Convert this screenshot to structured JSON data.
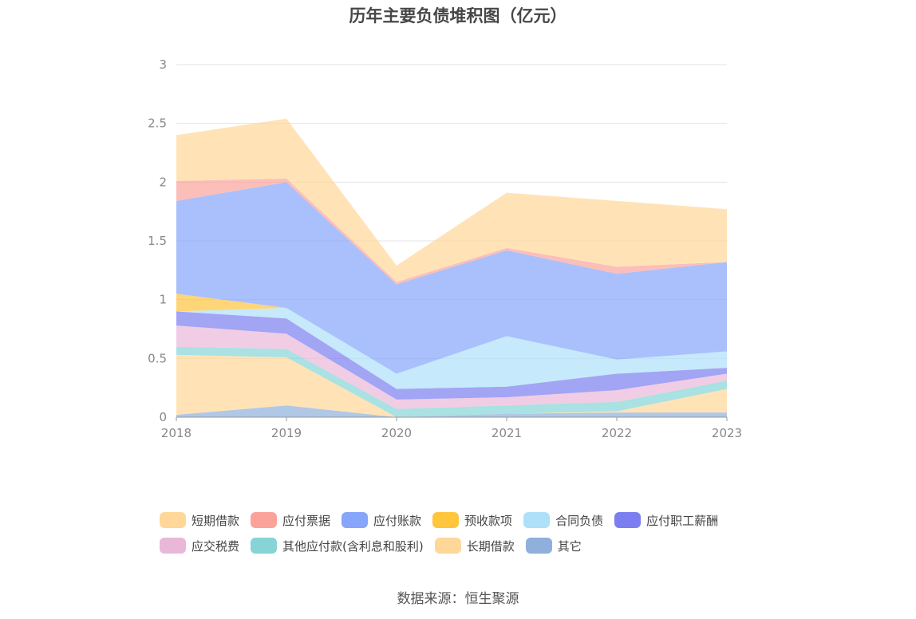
{
  "chart_data": {
    "type": "area",
    "stacked": true,
    "title": "历年主要负债堆积图（亿元）",
    "categories": [
      "2018",
      "2019",
      "2020",
      "2021",
      "2022",
      "2023"
    ],
    "ylim": [
      0,
      3
    ],
    "yticks": [
      "0",
      "0.5",
      "1",
      "1.5",
      "2",
      "2.5",
      "3"
    ],
    "grid": true,
    "legend_position": "bottom",
    "series": [
      {
        "name": "其它",
        "color": "#8fb0db",
        "values": [
          0.02,
          0.1,
          0.0,
          0.03,
          0.04,
          0.04
        ]
      },
      {
        "name": "长期借款",
        "color": "#ffd799",
        "values": [
          0.51,
          0.41,
          0.0,
          0.0,
          0.01,
          0.2
        ]
      },
      {
        "name": "其他应付款(含利息和股利)",
        "color": "#86d4d5",
        "values": [
          0.07,
          0.07,
          0.07,
          0.07,
          0.08,
          0.07
        ]
      },
      {
        "name": "应交税费",
        "color": "#e9b8d9",
        "values": [
          0.18,
          0.13,
          0.08,
          0.07,
          0.1,
          0.06
        ]
      },
      {
        "name": "应付职工薪酬",
        "color": "#7b7ef0",
        "values": [
          0.12,
          0.13,
          0.09,
          0.09,
          0.14,
          0.05
        ]
      },
      {
        "name": "合同负债",
        "color": "#aee0fa",
        "values": [
          0.0,
          0.09,
          0.13,
          0.43,
          0.12,
          0.14
        ]
      },
      {
        "name": "预收款项",
        "color": "#ffc53d",
        "values": [
          0.15,
          0.0,
          0.0,
          0.0,
          0.0,
          0.0
        ]
      },
      {
        "name": "应付账款",
        "color": "#86a5fb",
        "values": [
          0.79,
          1.07,
          0.76,
          0.73,
          0.73,
          0.76
        ]
      },
      {
        "name": "应付票据",
        "color": "#fba39b",
        "values": [
          0.17,
          0.03,
          0.02,
          0.02,
          0.06,
          0.0
        ]
      },
      {
        "name": "短期借款",
        "color": "#ffd799",
        "values": [
          0.39,
          0.51,
          0.14,
          0.47,
          0.56,
          0.45
        ]
      }
    ]
  },
  "legend": {
    "row1": [
      {
        "label": "短期借款",
        "color": "#ffd799"
      },
      {
        "label": "应付票据",
        "color": "#fba39b"
      },
      {
        "label": "应付账款",
        "color": "#86a5fb"
      },
      {
        "label": "预收款项",
        "color": "#ffc53d"
      },
      {
        "label": "合同负债",
        "color": "#aee0fa"
      },
      {
        "label": "应付职工薪酬",
        "color": "#7b7ef0"
      }
    ],
    "row2": [
      {
        "label": "应交税费",
        "color": "#e9b8d9"
      },
      {
        "label": "其他应付款(含利息和股利)",
        "color": "#86d4d5"
      },
      {
        "label": "长期借款",
        "color": "#ffd799"
      },
      {
        "label": "其它",
        "color": "#8fb0db"
      }
    ]
  },
  "source": "数据来源：恒生聚源"
}
